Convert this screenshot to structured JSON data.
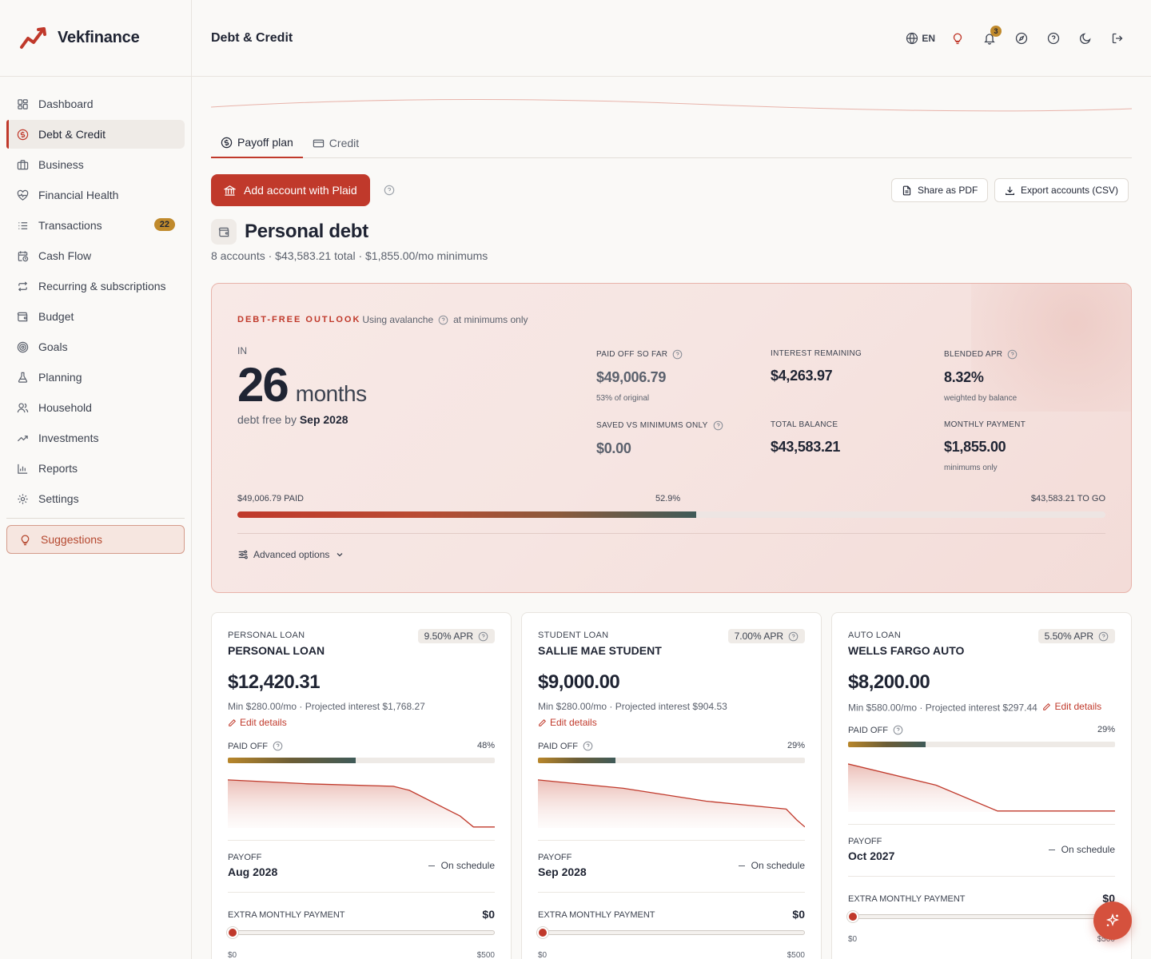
{
  "brand": {
    "name": "Vekfinance"
  },
  "sidebar": {
    "items": [
      {
        "label": "Dashboard",
        "icon": "grid-icon"
      },
      {
        "label": "Debt & Credit",
        "icon": "dollar-circle-icon"
      },
      {
        "label": "Business",
        "icon": "briefcase-icon"
      },
      {
        "label": "Financial Health",
        "icon": "heart-pulse-icon"
      },
      {
        "label": "Transactions",
        "icon": "list-icon",
        "badge": "22"
      },
      {
        "label": "Cash Flow",
        "icon": "calendar-clock-icon"
      },
      {
        "label": "Recurring & subscriptions",
        "icon": "repeat-icon"
      },
      {
        "label": "Budget",
        "icon": "wallet-icon"
      },
      {
        "label": "Goals",
        "icon": "target-icon"
      },
      {
        "label": "Planning",
        "icon": "flask-icon"
      },
      {
        "label": "Household",
        "icon": "users-icon"
      },
      {
        "label": "Investments",
        "icon": "trending-up-icon"
      },
      {
        "label": "Reports",
        "icon": "bar-chart-icon"
      },
      {
        "label": "Settings",
        "icon": "gear-icon"
      }
    ],
    "suggestions_label": "Suggestions"
  },
  "topbar": {
    "title": "Debt & Credit",
    "lang": "EN",
    "notification_count": "3"
  },
  "tabs": [
    {
      "label": "Payoff plan",
      "active": true
    },
    {
      "label": "Credit",
      "active": false
    }
  ],
  "actions": {
    "add_plaid": "Add account with Plaid",
    "share_pdf": "Share as PDF",
    "export_csv": "Export accounts (CSV)"
  },
  "section": {
    "title": "Personal debt",
    "subtitle": "8 accounts · $43,583.21 total · $1,855.00/mo minimums"
  },
  "outlook": {
    "kicker": "DEBT-FREE OUTLOOK",
    "strategy": "Using avalanche",
    "mode": "at minimums only",
    "in_label": "IN",
    "months": "26",
    "months_unit": "months",
    "debt_free_by_label": "debt free by",
    "debt_free_by": "Sep 2028",
    "stats": {
      "paid_off": {
        "label": "PAID OFF SO FAR",
        "value": "$49,006.79",
        "note": "53% of original"
      },
      "interest": {
        "label": "INTEREST REMAINING",
        "value": "$4,263.97"
      },
      "apr": {
        "label": "BLENDED APR",
        "value": "8.32%",
        "note": "weighted by balance"
      },
      "saved": {
        "label": "SAVED VS MINIMUMS ONLY",
        "value": "$0.00"
      },
      "total": {
        "label": "TOTAL BALANCE",
        "value": "$43,583.21"
      },
      "monthly": {
        "label": "MONTHLY PAYMENT",
        "value": "$1,855.00",
        "note": "minimums only"
      }
    },
    "progress": {
      "paid_label": "$49,006.79 PAID",
      "pct_label": "52.9%",
      "pct": 0.529,
      "togo_label": "$43,583.21 TO GO"
    },
    "advanced_label": "Advanced options"
  },
  "accounts": [
    {
      "type": "PERSONAL LOAN",
      "name": "PERSONAL LOAN",
      "apr": "9.50% APR",
      "balance": "$12,420.31",
      "min_line": "Min $280.00/mo · Projected interest $1,768.27",
      "edit": "Edit details",
      "paid_label": "PAID OFF",
      "paid_pct_label": "48%",
      "paid_pct": 0.48,
      "curve": [
        [
          0,
          0.97
        ],
        [
          0.3,
          0.89
        ],
        [
          0.62,
          0.84
        ],
        [
          0.68,
          0.76
        ],
        [
          0.87,
          0.24
        ],
        [
          0.92,
          0.02
        ],
        [
          1,
          0.02
        ]
      ],
      "payoff_label": "PAYOFF",
      "payoff": "Aug 2028",
      "schedule": "On schedule",
      "extra_label": "EXTRA MONTHLY PAYMENT",
      "extra": "$0",
      "range_min": "$0",
      "range_max": "$500"
    },
    {
      "type": "STUDENT LOAN",
      "name": "SALLIE MAE STUDENT",
      "apr": "7.00% APR",
      "balance": "$9,000.00",
      "min_line": "Min $280.00/mo · Projected interest $904.53",
      "edit": "Edit details",
      "paid_label": "PAID OFF",
      "paid_pct_label": "29%",
      "paid_pct": 0.29,
      "curve": [
        [
          0,
          0.97
        ],
        [
          0.32,
          0.8
        ],
        [
          0.63,
          0.54
        ],
        [
          0.93,
          0.38
        ],
        [
          0.97,
          0.16
        ],
        [
          1,
          0.02
        ]
      ],
      "payoff_label": "PAYOFF",
      "payoff": "Sep 2028",
      "schedule": "On schedule",
      "extra_label": "EXTRA MONTHLY PAYMENT",
      "extra": "$0",
      "range_min": "$0",
      "range_max": "$500"
    },
    {
      "type": "AUTO LOAN",
      "name": "WELLS FARGO AUTO",
      "apr": "5.50% APR",
      "balance": "$8,200.00",
      "min_line": "Min $580.00/mo · Projected interest $297.44",
      "edit": "Edit details",
      "paid_label": "PAID OFF",
      "paid_pct_label": "29%",
      "paid_pct": 0.29,
      "curve": [
        [
          0,
          0.97
        ],
        [
          0.33,
          0.54
        ],
        [
          0.56,
          0.02
        ],
        [
          1,
          0.02
        ]
      ],
      "payoff_label": "PAYOFF",
      "payoff": "Oct 2027",
      "schedule": "On schedule",
      "extra_label": "EXTRA MONTHLY PAYMENT",
      "extra": "$0",
      "range_min": "$0",
      "range_max": "$500"
    }
  ],
  "colors": {
    "accent": "#c0392b",
    "badge": "#c08a2c",
    "progress_end": "#3f5a58"
  }
}
